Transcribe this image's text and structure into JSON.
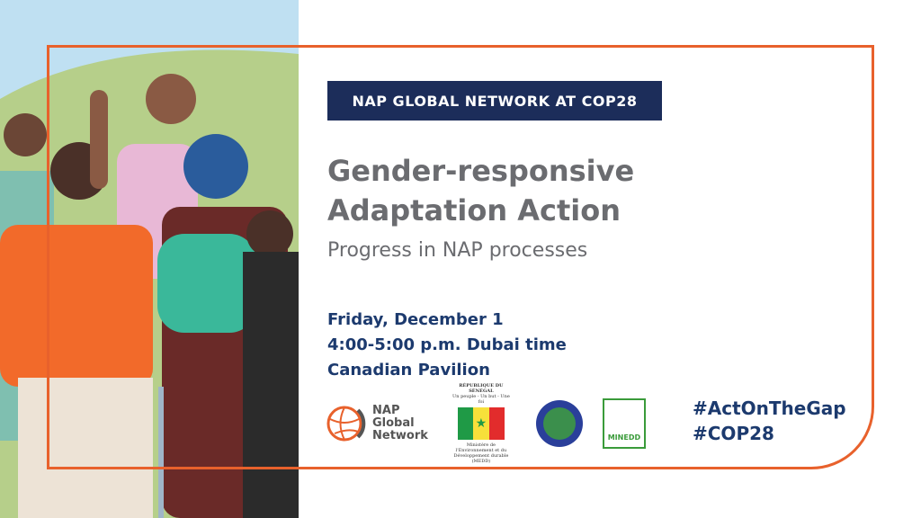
{
  "banner": "NAP GLOBAL NETWORK AT COP28",
  "title_line1": "Gender-responsive",
  "title_line2": "Adaptation Action",
  "subtitle": "Progress in NAP processes",
  "event": {
    "date": "Friday, December 1",
    "time": "4:00-5:00 p.m. Dubai time",
    "location": "Canadian Pavilion"
  },
  "hashtags": [
    "#ActOnTheGap",
    "#COP28"
  ],
  "logos": {
    "nap": [
      "NAP",
      "Global",
      "Network"
    ],
    "senegal_header": "RÉPUBLIQUE DU SÉNÉGAL",
    "senegal_motto": "Un peuple - Un but - Une foi",
    "senegal_ministry": "Ministère de l'Environnement et du Développement durable (MEDD)",
    "minedd": "MINEDD"
  },
  "colors": {
    "accent": "#e8612c",
    "navy": "#1c2d5a",
    "gray": "#6b6c70"
  }
}
